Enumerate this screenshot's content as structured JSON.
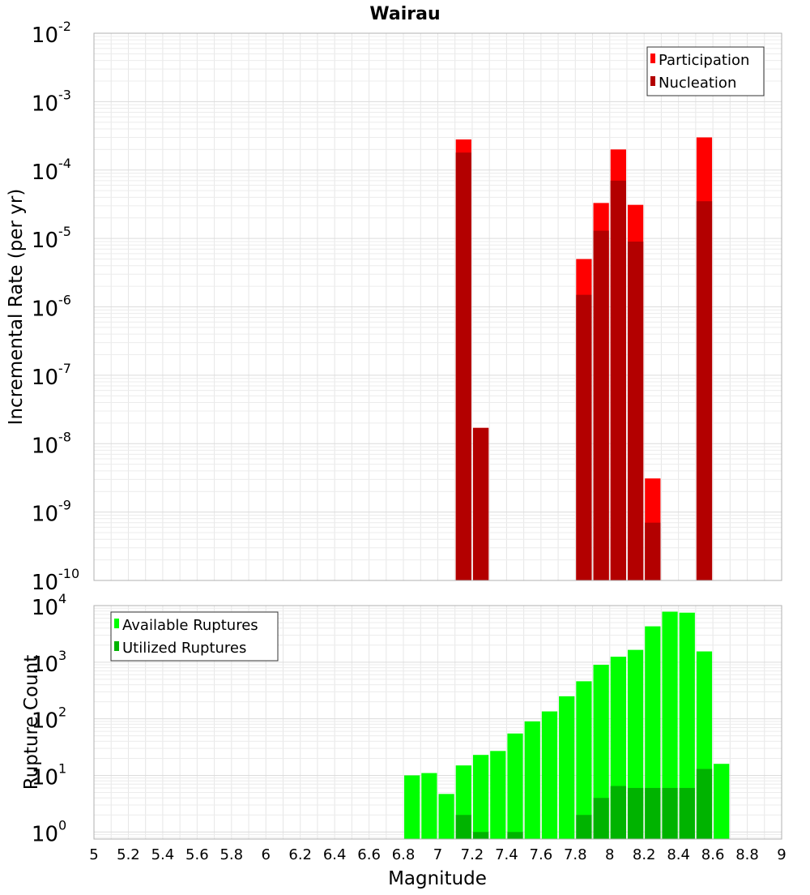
{
  "chart_data": [
    {
      "type": "bar",
      "title": "Wairau",
      "xlabel": "",
      "ylabel": "Incremental Rate (per yr)",
      "yscale": "log",
      "ylim": [
        1e-10,
        0.01
      ],
      "xlim": [
        5,
        9
      ],
      "bin_width": 0.1,
      "grid": true,
      "legend_position": "top-right",
      "y_ticks": [
        {
          "base": "10",
          "exp": "-10"
        },
        {
          "base": "10",
          "exp": "-9"
        },
        {
          "base": "10",
          "exp": "-8"
        },
        {
          "base": "10",
          "exp": "-7"
        },
        {
          "base": "10",
          "exp": "-6"
        },
        {
          "base": "10",
          "exp": "-5"
        },
        {
          "base": "10",
          "exp": "-4"
        },
        {
          "base": "10",
          "exp": "-3"
        },
        {
          "base": "10",
          "exp": "-2"
        }
      ],
      "series": [
        {
          "name": "Participation",
          "color": "#ff0000",
          "x": [
            7.15,
            7.25,
            7.85,
            7.95,
            8.05,
            8.15,
            8.25,
            8.55
          ],
          "values": [
            0.00028,
            1.7e-08,
            5e-06,
            3.3e-05,
            0.0002,
            3.1e-05,
            3.1e-09,
            0.0003
          ]
        },
        {
          "name": "Nucleation",
          "color": "#b30000",
          "x": [
            7.15,
            7.25,
            7.85,
            7.95,
            8.05,
            8.15,
            8.25,
            8.55
          ],
          "values": [
            0.00018,
            1.7e-08,
            1.5e-06,
            1.3e-05,
            7e-05,
            9e-06,
            7e-10,
            3.5e-05
          ]
        }
      ]
    },
    {
      "type": "bar",
      "title": "",
      "xlabel": "Magnitude",
      "ylabel": "Rupture Count",
      "yscale": "log",
      "ylim": [
        0.75,
        10000
      ],
      "xlim": [
        5,
        9
      ],
      "bin_width": 0.1,
      "grid": true,
      "legend_position": "top-left",
      "x_ticks": [
        "5",
        "5.2",
        "5.4",
        "5.6",
        "5.8",
        "6",
        "6.2",
        "6.4",
        "6.6",
        "6.8",
        "7",
        "7.2",
        "7.4",
        "7.6",
        "7.8",
        "8",
        "8.2",
        "8.4",
        "8.6",
        "8.8",
        "9"
      ],
      "y_ticks": [
        {
          "base": "10",
          "exp": "0"
        },
        {
          "base": "10",
          "exp": "1"
        },
        {
          "base": "10",
          "exp": "2"
        },
        {
          "base": "10",
          "exp": "3"
        },
        {
          "base": "10",
          "exp": "4"
        }
      ],
      "series": [
        {
          "name": "Available Ruptures",
          "color": "#00ff00",
          "x": [
            6.85,
            6.95,
            7.05,
            7.15,
            7.25,
            7.35,
            7.45,
            7.55,
            7.65,
            7.75,
            7.85,
            7.95,
            8.05,
            8.15,
            8.25,
            8.35,
            8.45,
            8.55,
            8.65
          ],
          "values": [
            10,
            11,
            4.7,
            15,
            23,
            27,
            55,
            90,
            135,
            250,
            460,
            900,
            1250,
            1650,
            4300,
            7800,
            7500,
            1550,
            16
          ]
        },
        {
          "name": "Utilized Ruptures",
          "color": "#00b300",
          "x": [
            7.15,
            7.25,
            7.45,
            7.85,
            7.95,
            8.05,
            8.15,
            8.25,
            8.35,
            8.45,
            8.55
          ],
          "values": [
            2,
            1,
            1,
            2,
            4,
            6.5,
            6,
            6,
            6,
            6,
            13
          ]
        }
      ]
    }
  ]
}
